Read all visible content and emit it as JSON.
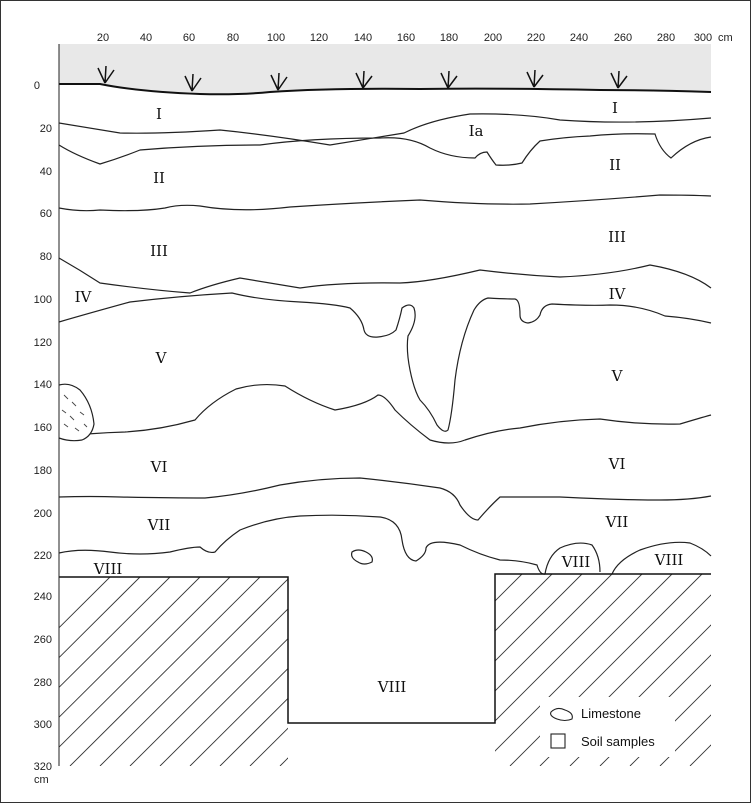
{
  "figure": {
    "x_unit": "cm",
    "y_unit": "cm",
    "x_ticks": [
      "20",
      "40",
      "60",
      "80",
      "100",
      "120",
      "140",
      "160",
      "180",
      "200",
      "220",
      "240",
      "260",
      "280",
      "300"
    ],
    "y_ticks": [
      "0",
      "20",
      "40",
      "60",
      "80",
      "100",
      "120",
      "140",
      "160",
      "180",
      "200",
      "220",
      "240",
      "260",
      "280",
      "300",
      "320"
    ],
    "layers": {
      "I_left": "I",
      "I_right": "I",
      "Ia": "Ia",
      "II_left": "II",
      "II_right": "II",
      "III_left": "III",
      "III_right": "III",
      "IV_left": "IV",
      "IV_right": "IV",
      "V_left": "V",
      "V_right": "V",
      "VI_left": "VI",
      "VI_right": "VI",
      "VII_left": "VII",
      "VII_right": "VII",
      "VIII_left": "VIII",
      "VIII_mid": "VIII",
      "VIII_right": "VIII",
      "VIII_pit": "VIII"
    },
    "legend": {
      "limestone": "Limestone",
      "soil_samples": "Soil samples"
    },
    "colors": {
      "surface_fill": "#e8e8e8",
      "line": "#222222"
    }
  }
}
